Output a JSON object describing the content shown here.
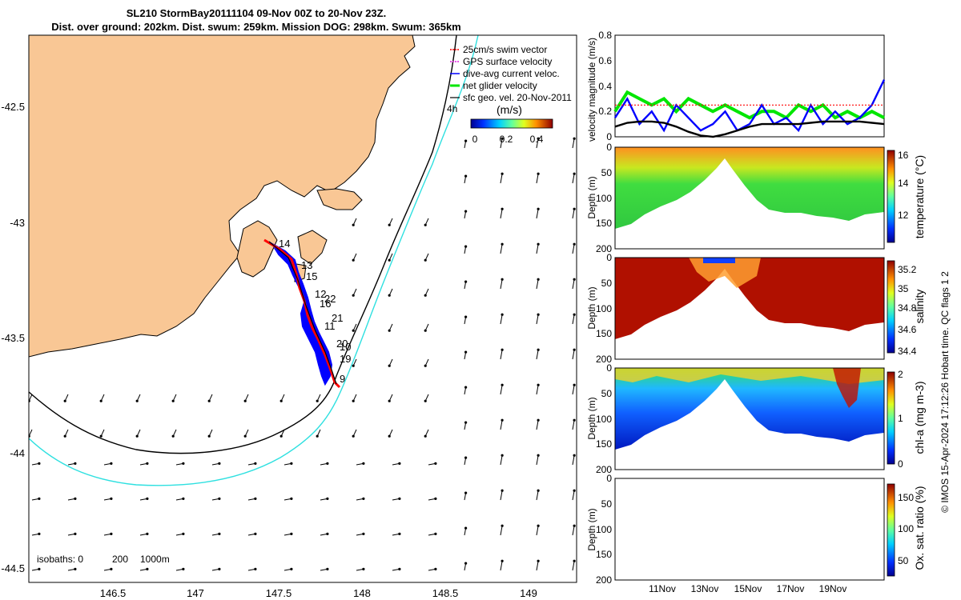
{
  "title": {
    "line1": "SL210 StormBay20111104 09-Nov 00Z to 20-Nov 23Z.",
    "line2": "Dist. over ground: 202km. Dist. swum: 259km. Mission DOG: 298km. Swum: 365km"
  },
  "map": {
    "xticks": [
      "146.5",
      "147",
      "147.5",
      "148",
      "148.5",
      "149"
    ],
    "yticks": [
      "-42.5",
      "-43",
      "-43.5",
      "-44",
      "-44.5"
    ],
    "legend": [
      "25cm/s swim vector",
      "GPS surface velocity",
      "dive-avg current veloc.",
      "net glider velocity",
      "sfc geo. vel. 20-Nov-2011"
    ],
    "legend_extra": "4h",
    "colorbar_title": "(m/s)",
    "colorbar_ticks": [
      "0",
      "0.2",
      "0.4"
    ],
    "isobaths_label": "isobaths: 0",
    "isobaths_values": [
      "200",
      "1000m"
    ],
    "day_labels": [
      "14",
      "13",
      "15",
      "12",
      "22",
      "16",
      "21",
      "11",
      "20",
      "10",
      "19",
      "9"
    ]
  },
  "colors": {
    "land": "#f9c795",
    "cyan_isobath": "#2ee0e0",
    "track_red": "#ff0000",
    "track_blue": "#0000ff",
    "net_green": "#00e600"
  },
  "chart_data": [
    {
      "type": "line",
      "title": "",
      "ylabel": "velocity magnitude (m/s)",
      "ylim": [
        0,
        0.8
      ],
      "yticks": [
        "0",
        "0.2",
        "0.4",
        "0.6",
        "0.8"
      ],
      "x_days": [
        10,
        10.5,
        11,
        11.5,
        12,
        12.5,
        13,
        13.5,
        14,
        14.5,
        15,
        15.5,
        16,
        16.5,
        17,
        17.5,
        18,
        18.5,
        19,
        19.5,
        20,
        20.5,
        21
      ],
      "series": [
        {
          "name": "net glider velocity",
          "color": "#00e600",
          "values": [
            0.2,
            0.35,
            0.3,
            0.25,
            0.3,
            0.2,
            0.3,
            0.25,
            0.2,
            0.25,
            0.2,
            0.15,
            0.2,
            0.2,
            0.15,
            0.25,
            0.2,
            0.25,
            0.15,
            0.2,
            0.15,
            0.2,
            0.15
          ]
        },
        {
          "name": "dive-avg current veloc.",
          "color": "#0000ff",
          "values": [
            0.15,
            0.3,
            0.1,
            0.2,
            0.05,
            0.25,
            0.15,
            0.05,
            0.1,
            0.2,
            0.05,
            0.1,
            0.25,
            0.1,
            0.15,
            0.05,
            0.25,
            0.1,
            0.2,
            0.1,
            0.15,
            0.25,
            0.45
          ]
        },
        {
          "name": "25cm/s swim vector",
          "color": "#ff0000",
          "values": [
            0.25,
            0.25,
            0.25,
            0.25,
            0.25,
            0.25,
            0.25,
            0.25,
            0.25,
            0.25,
            0.25,
            0.25,
            0.25,
            0.25,
            0.25,
            0.25,
            0.25,
            0.25,
            0.25,
            0.25,
            0.25,
            0.25,
            0.25
          ]
        },
        {
          "name": "sfc geo. vel.",
          "color": "#000000",
          "values": [
            0.08,
            0.11,
            0.12,
            0.12,
            0.11,
            0.08,
            0.04,
            0.01,
            0.0,
            0.02,
            0.05,
            0.08,
            0.1,
            0.1,
            0.1,
            0.1,
            0.11,
            0.12,
            0.12,
            0.12,
            0.12,
            0.11,
            0.1
          ]
        }
      ]
    },
    {
      "type": "heatmap",
      "ylabel": "Depth (m)",
      "clabel": "temperature (°C)",
      "yticks": [
        "0",
        "50",
        "100",
        "150",
        "200"
      ],
      "cticks": [
        "12",
        "14",
        "16"
      ],
      "clim": [
        10,
        16.2
      ]
    },
    {
      "type": "heatmap",
      "ylabel": "Depth (m)",
      "clabel": "salinity",
      "yticks": [
        "0",
        "50",
        "100",
        "150",
        "200"
      ],
      "cticks": [
        "34.4",
        "34.6",
        "34.8",
        "35",
        "35.2"
      ],
      "clim": [
        34.35,
        35.3
      ]
    },
    {
      "type": "heatmap",
      "ylabel": "Depth (m)",
      "clabel": "chl-a (mg m-3)",
      "yticks": [
        "0",
        "50",
        "100",
        "150",
        "200"
      ],
      "cticks": [
        "0",
        "1",
        "2"
      ],
      "clim": [
        0,
        2
      ]
    },
    {
      "type": "heatmap",
      "ylabel": "Depth (m)",
      "clabel": "Ox. sat. ratio (%)",
      "yticks": [
        "0",
        "50",
        "100",
        "150",
        "200"
      ],
      "cticks": [
        "50",
        "100",
        "150"
      ],
      "clim": [
        30,
        170
      ],
      "xticks": [
        "11Nov",
        "13Nov",
        "15Nov",
        "17Nov",
        "19Nov"
      ]
    }
  ],
  "side_note": "© IMOS 15-Apr-2024 17:12:26 Hobart time. QC flags 1  2"
}
